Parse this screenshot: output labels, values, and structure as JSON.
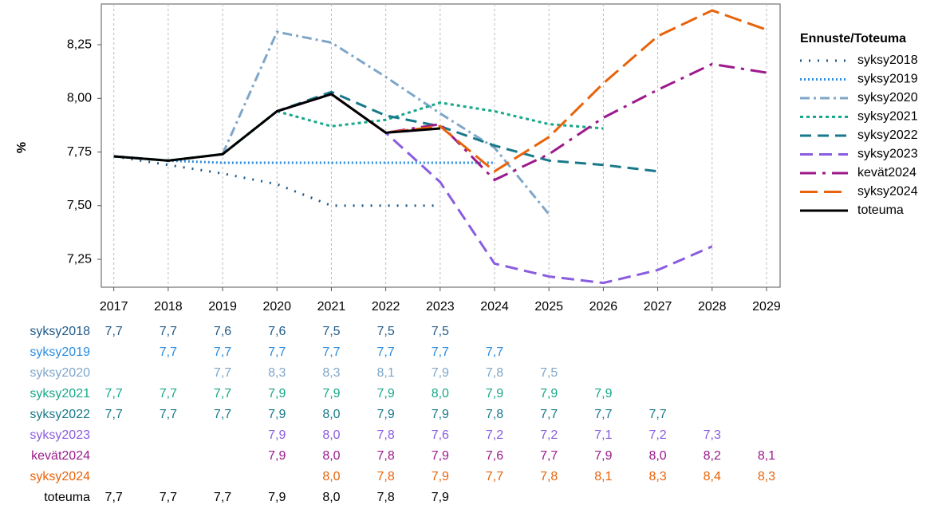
{
  "chart_data": {
    "type": "line",
    "y_label": "%",
    "legend_title": "Ennuste/Toteuma",
    "legend": "right",
    "grid": "x",
    "x": [
      2017,
      2018,
      2019,
      2020,
      2021,
      2022,
      2023,
      2024,
      2025,
      2026,
      2027,
      2028,
      2029
    ],
    "xlim": [
      2016.77,
      2029.25
    ],
    "xticks": [
      2017,
      2018,
      2019,
      2020,
      2021,
      2022,
      2023,
      2024,
      2025,
      2026,
      2027,
      2028,
      2029
    ],
    "ylim": [
      7.12,
      8.44
    ],
    "yticks": [
      {
        "value": 7.25,
        "label": "7,25"
      },
      {
        "value": 7.5,
        "label": "7,50"
      },
      {
        "value": 7.75,
        "label": "7,75"
      },
      {
        "value": 8.0,
        "label": "8,00"
      },
      {
        "value": 8.25,
        "label": "8,25"
      }
    ],
    "series": [
      {
        "name": "syksy2018",
        "color": "#1f5a8a",
        "values": [
          7.73,
          7.69,
          7.65,
          7.6,
          7.5,
          7.5,
          7.5,
          null,
          null,
          null,
          null,
          null,
          null
        ],
        "value_labels": [
          "7,7",
          "7,7",
          "7,6",
          "7,6",
          "7,5",
          "7,5",
          "7,5",
          null,
          null,
          null,
          null,
          null,
          null
        ]
      },
      {
        "name": "syksy2019",
        "color": "#2b8de0",
        "values": [
          null,
          7.71,
          7.7,
          7.7,
          7.7,
          7.7,
          7.7,
          7.7,
          null,
          null,
          null,
          null,
          null
        ],
        "value_labels": [
          null,
          "7,7",
          "7,7",
          "7,7",
          "7,7",
          "7,7",
          "7,7",
          "7,7",
          null,
          null,
          null,
          null,
          null
        ]
      },
      {
        "name": "syksy2020",
        "color": "#7fa6c9",
        "values": [
          null,
          null,
          7.74,
          8.31,
          8.26,
          8.1,
          7.93,
          7.77,
          7.46,
          null,
          null,
          null,
          null
        ],
        "value_labels": [
          null,
          null,
          "7,7",
          "8,3",
          "8,3",
          "8,1",
          "7,9",
          "7,8",
          "7,5",
          null,
          null,
          null,
          null
        ]
      },
      {
        "name": "syksy2021",
        "color": "#17a88a",
        "values": [
          7.73,
          7.71,
          7.74,
          7.94,
          7.87,
          7.9,
          7.98,
          7.94,
          7.88,
          7.86,
          null,
          null,
          null
        ],
        "value_labels": [
          "7,7",
          "7,7",
          "7,7",
          "7,9",
          "7,9",
          "7,9",
          "8,0",
          "7,9",
          "7,9",
          "7,9",
          null,
          null,
          null
        ]
      },
      {
        "name": "syksy2022",
        "color": "#19798a",
        "values": [
          7.73,
          7.71,
          7.74,
          7.94,
          8.03,
          7.92,
          7.87,
          7.78,
          7.71,
          7.69,
          7.66,
          null,
          null
        ],
        "value_labels": [
          "7,7",
          "7,7",
          "7,7",
          "7,9",
          "8,0",
          "7,9",
          "7,9",
          "7,8",
          "7,7",
          "7,7",
          "7,7",
          null,
          null
        ]
      },
      {
        "name": "syksy2023",
        "color": "#8a5ce0",
        "values": [
          null,
          null,
          null,
          7.94,
          8.02,
          7.84,
          7.61,
          7.23,
          7.17,
          7.14,
          7.2,
          7.31,
          null
        ],
        "value_labels": [
          null,
          null,
          null,
          "7,9",
          "8,0",
          "7,8",
          "7,6",
          "7,2",
          "7,2",
          "7,1",
          "7,2",
          "7,3",
          null
        ]
      },
      {
        "name": "kevät2024",
        "color": "#9c1a8c",
        "values": [
          null,
          null,
          null,
          7.94,
          8.02,
          7.84,
          7.88,
          7.62,
          7.74,
          7.91,
          8.04,
          8.16,
          8.12
        ],
        "value_labels": [
          null,
          null,
          null,
          "7,9",
          "8,0",
          "7,8",
          "7,9",
          "7,6",
          "7,7",
          "7,9",
          "8,0",
          "8,2",
          "8,1"
        ]
      },
      {
        "name": "syksy2024",
        "color": "#e8630a",
        "values": [
          null,
          null,
          null,
          null,
          8.02,
          7.84,
          7.87,
          7.66,
          7.82,
          8.07,
          8.29,
          8.41,
          8.32
        ],
        "value_labels": [
          null,
          null,
          null,
          null,
          "8,0",
          "7,8",
          "7,9",
          "7,7",
          "7,8",
          "8,1",
          "8,3",
          "8,4",
          "8,3"
        ]
      },
      {
        "name": "toteuma",
        "color": "#000000",
        "values": [
          7.73,
          7.71,
          7.74,
          7.94,
          8.02,
          7.84,
          7.86,
          null,
          null,
          null,
          null,
          null,
          null
        ],
        "value_labels": [
          "7,7",
          "7,7",
          "7,7",
          "7,9",
          "8,0",
          "7,8",
          "7,9",
          null,
          null,
          null,
          null,
          null,
          null
        ]
      }
    ]
  }
}
